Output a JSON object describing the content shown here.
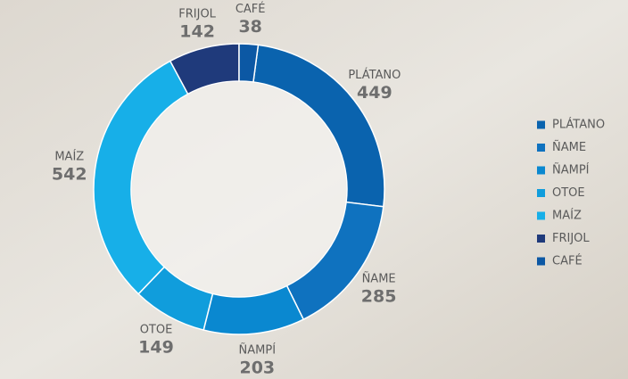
{
  "chart_data": {
    "type": "donut",
    "categories": [
      "PLÁTANO",
      "ÑAME",
      "ÑAMPÍ",
      "OTOE",
      "MAÍZ",
      "FRIJOL",
      "CAFÉ"
    ],
    "values": [
      449,
      285,
      203,
      149,
      542,
      142,
      38
    ],
    "colors": [
      "#0a63ae",
      "#0f72bf",
      "#0a88d0",
      "#109ddc",
      "#17afe8",
      "#1f3a7b",
      "#0c58a4"
    ],
    "legend": "right"
  }
}
